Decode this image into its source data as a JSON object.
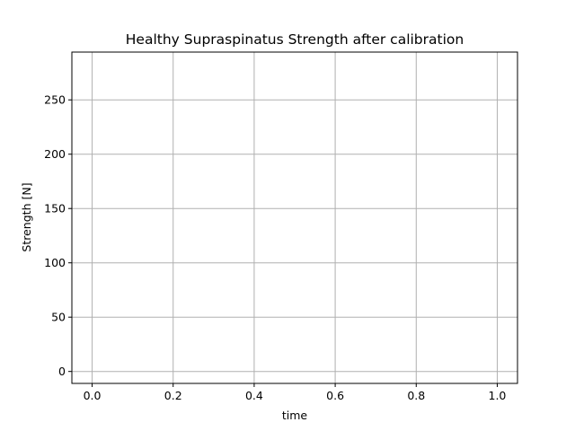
{
  "chart_data": {
    "type": "line",
    "title": "Healthy Supraspinatus Strength after calibration",
    "xlabel": "time",
    "ylabel": "Strength [N]",
    "xlim": [
      -0.05,
      1.05
    ],
    "ylim": [
      -11,
      294
    ],
    "x_ticks": [
      0.0,
      0.2,
      0.4,
      0.6,
      0.8,
      1.0
    ],
    "x_tick_labels": [
      "0.0",
      "0.2",
      "0.4",
      "0.6",
      "0.8",
      "1.0"
    ],
    "y_ticks": [
      0,
      50,
      100,
      150,
      200,
      250
    ],
    "y_tick_labels": [
      "0",
      "50",
      "100",
      "150",
      "200",
      "250"
    ],
    "grid": true,
    "legend": "none",
    "grid_color": "#b0b0b0",
    "series": []
  }
}
